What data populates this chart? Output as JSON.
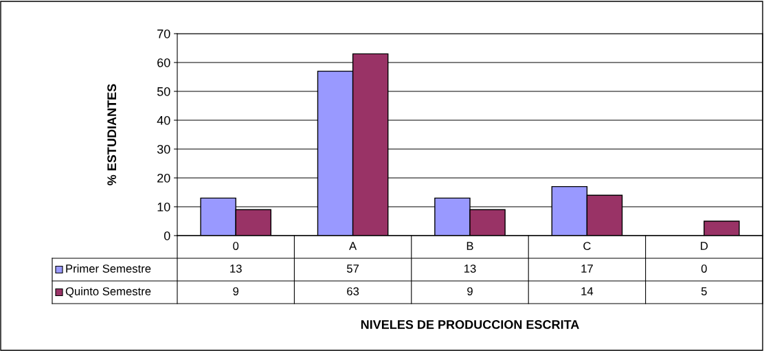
{
  "chart_data": {
    "type": "bar",
    "annotations": [
      "NIVELES DE PRODUCCION ESCRITA"
    ],
    "ylabel": "% ESTUDIANTES",
    "categories": [
      "0",
      "A",
      "B",
      "C",
      "D"
    ],
    "series": [
      {
        "name": "Primer Semestre",
        "color": "#9999ff",
        "values": [
          13,
          57,
          13,
          17,
          0
        ]
      },
      {
        "name": "Quinto Semestre",
        "color": "#993366",
        "values": [
          9,
          63,
          9,
          14,
          5
        ]
      }
    ],
    "ylim": [
      0,
      70
    ],
    "yticks": [
      0,
      10,
      20,
      30,
      40,
      50,
      60,
      70
    ],
    "grid": "y",
    "legend": "bottom",
    "data_labels": true
  }
}
